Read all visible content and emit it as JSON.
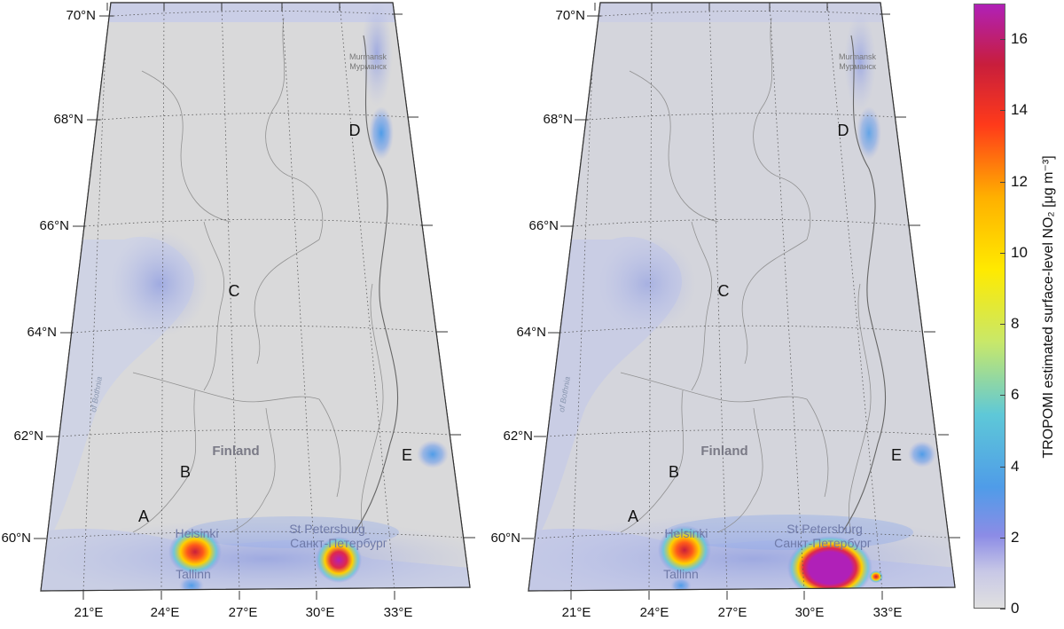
{
  "maps": [
    {
      "lat_labels": [
        "70°N",
        "68°N",
        "66°N",
        "64°N",
        "62°N",
        "60°N"
      ],
      "lon_labels": [
        "21°E",
        "24°E",
        "27°E",
        "30°E",
        "33°E"
      ],
      "markers": [
        "A",
        "B",
        "C",
        "D",
        "E"
      ],
      "places": {
        "finland": "Finland",
        "helsinki": "Helsinki",
        "tallinn": "Tallinn",
        "spb_en": "St Petersburg",
        "spb_ru": "Санкт-Петербург",
        "murmansk_en": "Murmansk",
        "murmansk_ru": "Мурманск",
        "bothnia": "of Bothnia"
      }
    },
    {
      "lat_labels": [
        "70°N",
        "68°N",
        "66°N",
        "64°N",
        "62°N",
        "60°N"
      ],
      "lon_labels": [
        "21°E",
        "24°E",
        "27°E",
        "30°E",
        "33°E"
      ],
      "markers": [
        "A",
        "B",
        "C",
        "D",
        "E"
      ],
      "places": {
        "finland": "Finland",
        "helsinki": "Helsinki",
        "tallinn": "Tallinn",
        "spb_en": "St Petersburg",
        "spb_ru": "Санкт-Петербург",
        "murmansk_en": "Murmansk",
        "murmansk_ru": "Мурманск",
        "bothnia": "of Bothnia"
      }
    }
  ],
  "colorbar": {
    "label": "TROPOMI estimated surface-level NO₂ [μg m⁻³]",
    "ticks": [
      "16",
      "14",
      "12",
      "10",
      "8",
      "6",
      "4",
      "2",
      "0"
    ],
    "tick_values": [
      16,
      14,
      12,
      10,
      8,
      6,
      4,
      2,
      0
    ],
    "min": 0,
    "max": 17,
    "colors": [
      "#e0e0e0",
      "#8c8ce6",
      "#4f9ce8",
      "#5ec8d8",
      "#c8e86a",
      "#ffea00",
      "#ffb000",
      "#ff3a1a",
      "#c81e3c",
      "#b020b8"
    ]
  }
}
